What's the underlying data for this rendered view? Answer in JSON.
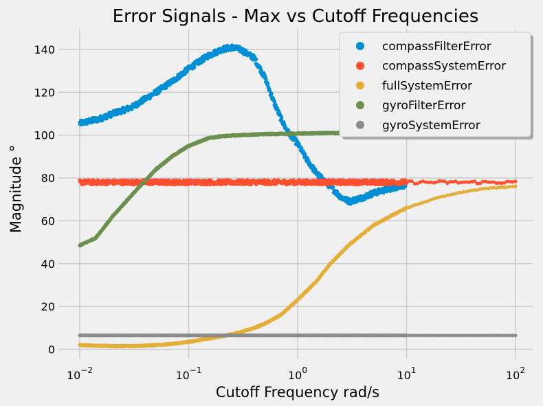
{
  "chart_data": {
    "type": "scatter",
    "title": "Error Signals - Max vs Cutoff Frequencies",
    "xlabel": "Cutoff Frequency rad/s",
    "ylabel": "Magnitude °",
    "x_scale": "log",
    "xlim": [
      0.01,
      100
    ],
    "ylim": [
      0,
      150
    ],
    "x_ticks": [
      {
        "value": 0.01,
        "base": "10",
        "exp": "−2"
      },
      {
        "value": 0.1,
        "base": "10",
        "exp": "−1"
      },
      {
        "value": 1,
        "base": "10",
        "exp": "0"
      },
      {
        "value": 10,
        "base": "10",
        "exp": "1"
      },
      {
        "value": 100,
        "base": "10",
        "exp": "2"
      }
    ],
    "y_ticks": [
      0,
      20,
      40,
      60,
      80,
      100,
      120,
      140
    ],
    "grid": true,
    "legend_position": "top-right",
    "series": [
      {
        "name": "compassFilterError",
        "color": "#008fd5",
        "points": [
          [
            0.01,
            105.5
          ],
          [
            0.015,
            107.5
          ],
          [
            0.02,
            110
          ],
          [
            0.03,
            113
          ],
          [
            0.05,
            120
          ],
          [
            0.07,
            125
          ],
          [
            0.1,
            131
          ],
          [
            0.15,
            137
          ],
          [
            0.2,
            140
          ],
          [
            0.25,
            141
          ],
          [
            0.3,
            140
          ],
          [
            0.4,
            136
          ],
          [
            0.5,
            127
          ],
          [
            0.6,
            116
          ],
          [
            0.7,
            108
          ],
          [
            0.8,
            102
          ],
          [
            1.0,
            96
          ],
          [
            1.2,
            89
          ],
          [
            1.5,
            82
          ],
          [
            2.0,
            76
          ],
          [
            2.5,
            71
          ],
          [
            3.0,
            69
          ],
          [
            4.0,
            71
          ],
          [
            5.0,
            73
          ],
          [
            7.0,
            75
          ],
          [
            10.0,
            77
          ]
        ]
      },
      {
        "name": "compassSystemError",
        "color": "#fc4f30",
        "points": [
          [
            0.01,
            78
          ],
          [
            100,
            78
          ]
        ]
      },
      {
        "name": "fullSystemError",
        "color": "#e5ae38",
        "points": [
          [
            0.01,
            2
          ],
          [
            0.02,
            1.5
          ],
          [
            0.03,
            1.5
          ],
          [
            0.05,
            2
          ],
          [
            0.07,
            2.5
          ],
          [
            0.1,
            3.5
          ],
          [
            0.15,
            5
          ],
          [
            0.2,
            6
          ],
          [
            0.3,
            8
          ],
          [
            0.4,
            10
          ],
          [
            0.5,
            12
          ],
          [
            0.7,
            16
          ],
          [
            1.0,
            23
          ],
          [
            1.5,
            32
          ],
          [
            2.0,
            40
          ],
          [
            3.0,
            49
          ],
          [
            5.0,
            58
          ],
          [
            7.0,
            62
          ],
          [
            10.0,
            66
          ],
          [
            15.0,
            69
          ],
          [
            20.0,
            71
          ],
          [
            30.0,
            73
          ],
          [
            50.0,
            75
          ],
          [
            100.0,
            76
          ]
        ]
      },
      {
        "name": "gyroFilterError",
        "color": "#6d904f",
        "points": [
          [
            0.01,
            48.5
          ],
          [
            0.014,
            52
          ],
          [
            0.02,
            62
          ],
          [
            0.03,
            72
          ],
          [
            0.05,
            84
          ],
          [
            0.07,
            90
          ],
          [
            0.1,
            95
          ],
          [
            0.15,
            98.5
          ],
          [
            0.2,
            99.5
          ],
          [
            0.3,
            100
          ],
          [
            0.5,
            100.5
          ],
          [
            1.0,
            100.7
          ],
          [
            2.0,
            101
          ],
          [
            3.0,
            101
          ]
        ]
      },
      {
        "name": "gyroSystemError",
        "color": "#8b8b8b",
        "points": [
          [
            0.01,
            6.5
          ],
          [
            100,
            6.5
          ]
        ]
      }
    ]
  }
}
